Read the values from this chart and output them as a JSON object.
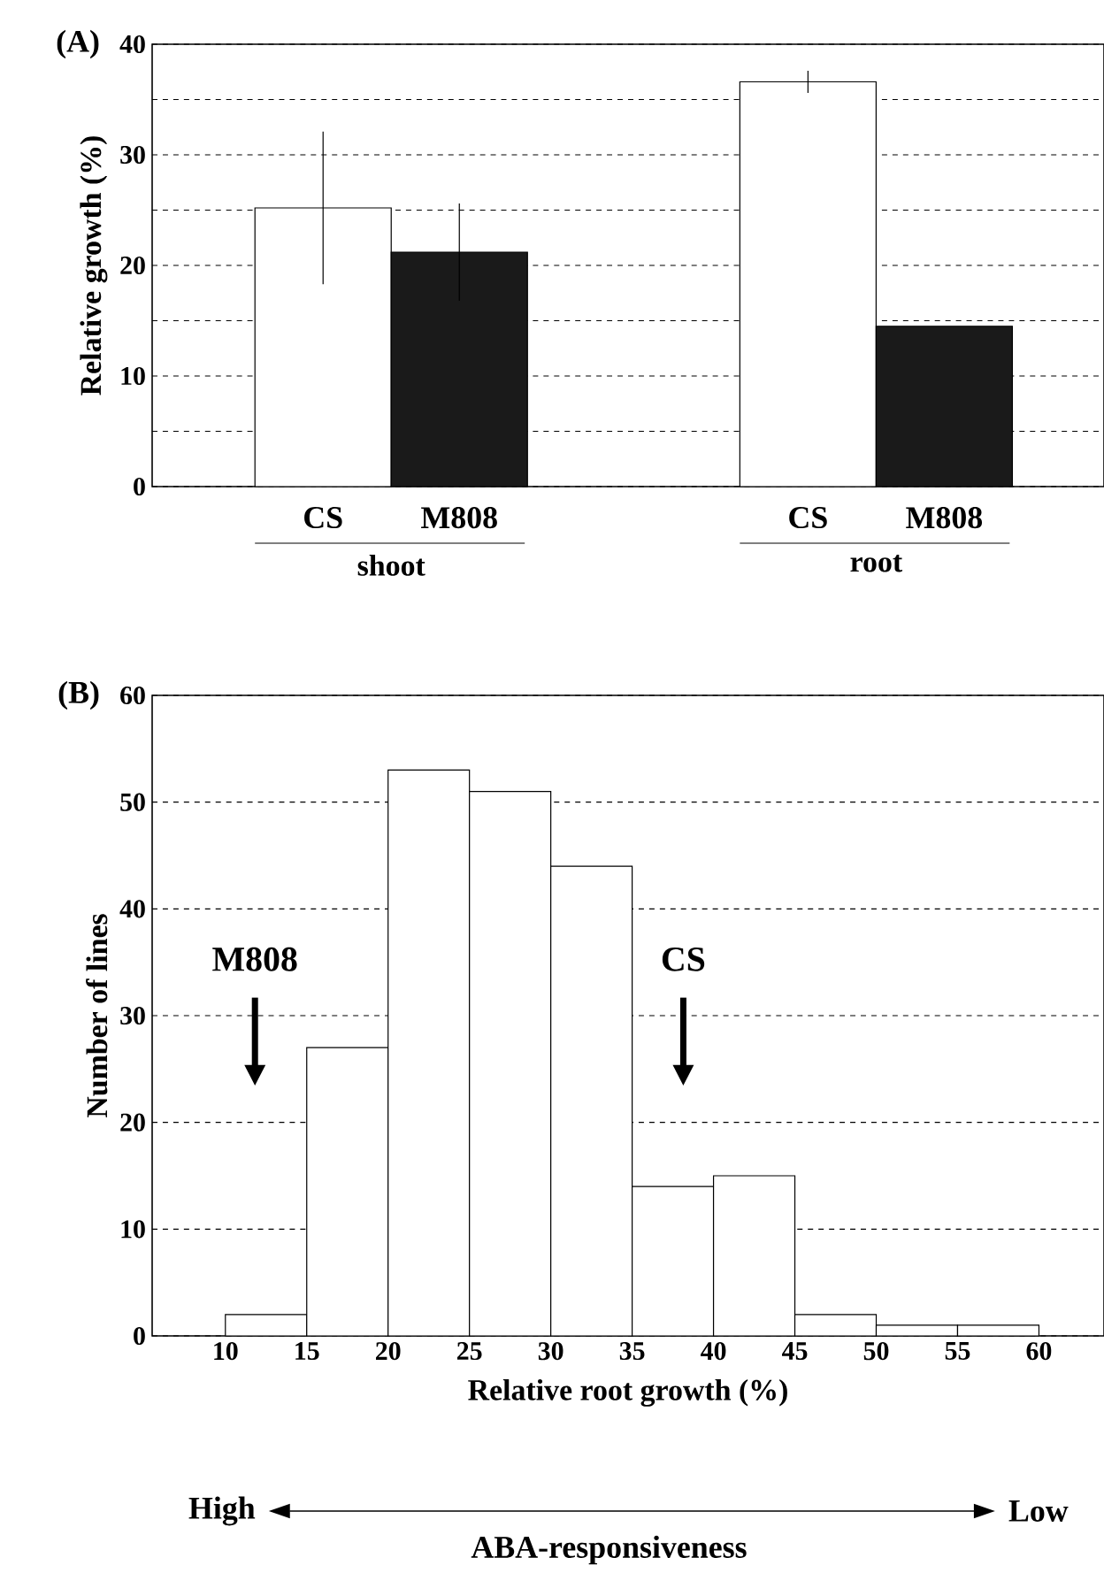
{
  "chart_data": [
    {
      "type": "bar",
      "title": "(A)",
      "ylabel": "Relative growth (%)",
      "categories": [
        "shoot",
        "root"
      ],
      "series": [
        {
          "name": "CS",
          "color": "#ffffff",
          "values": [
            25.2,
            36.6
          ],
          "errors": [
            6.9,
            1
          ]
        },
        {
          "name": "M808",
          "color": "#1a1a1a",
          "values": [
            21.2,
            14.5
          ],
          "errors": [
            4.4,
            null
          ]
        }
      ],
      "ylim": [
        0,
        40
      ],
      "yticks": [
        0,
        {
          "value": 5,
          "label": null
        },
        10,
        {
          "value": 15,
          "label": null
        },
        20,
        {
          "value": 25,
          "label": null
        },
        30,
        {
          "value": 35,
          "label": null
        },
        40
      ],
      "grid": "y"
    },
    {
      "type": "histogram",
      "title": "(B)",
      "xlabel": "Relative root growth (%)",
      "ylabel": "Number of lines",
      "bins": [
        10,
        15,
        20,
        25,
        30,
        35,
        40,
        45,
        50,
        55,
        60
      ],
      "values": [
        2,
        27,
        53,
        51,
        44,
        14,
        15,
        2,
        1,
        1
      ],
      "color": "#ffffff",
      "xlim": [
        5.5,
        64
      ],
      "xticks": [
        10,
        15,
        20,
        25,
        30,
        35,
        40,
        45,
        50,
        55,
        60
      ],
      "ylim": [
        0,
        60
      ],
      "yticks": [
        0,
        10,
        20,
        30,
        40,
        50,
        60
      ],
      "grid": "y",
      "annotations": [
        "M808",
        "CS",
        "High",
        "Low",
        "ABA-responsiveness"
      ]
    }
  ]
}
